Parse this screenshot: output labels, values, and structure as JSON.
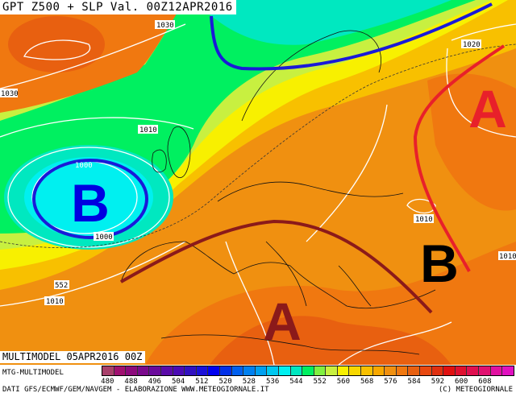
{
  "title": "GPT Z500 + SLP Val. 00Z12APR2016",
  "run_label": "MULTIMODEL 05APR2016 00Z",
  "model_label": "MTG-MULTIMODEL",
  "credit": "DATI GFS/ECMWF/GEM/NAVGEM - ELABORAZIONE WWW.METEOGIORNALE.IT",
  "copyright": "(C) METEOGIORNALE",
  "legend": {
    "unit_levels": [
      "480",
      "488",
      "496",
      "504",
      "512",
      "520",
      "528",
      "536",
      "544",
      "552",
      "560",
      "568",
      "576",
      "584",
      "592",
      "600",
      "608"
    ],
    "colors": [
      "#a8406a",
      "#a01070",
      "#8c0a7c",
      "#7a0a8c",
      "#6a0a9c",
      "#5a0aa8",
      "#4a0ab4",
      "#3010c0",
      "#1a10d8",
      "#0000f0",
      "#0030e8",
      "#0060f0",
      "#0080f0",
      "#00a0f0",
      "#00c8f0",
      "#00f0f0",
      "#00e8c0",
      "#00f060",
      "#80f040",
      "#c8f040",
      "#f8f000",
      "#f8d800",
      "#f8c000",
      "#f8a800",
      "#f09010",
      "#f07810",
      "#e86010",
      "#e84810",
      "#e03010",
      "#e01010",
      "#e01030",
      "#e01050",
      "#e01070",
      "#e010a0",
      "#e010c0"
    ]
  },
  "isobar_labels": [
    "1030",
    "1030",
    "1010",
    "1000",
    "1000",
    "552",
    "1010",
    "1020",
    "1010",
    "1010"
  ],
  "pressure_centers": [
    {
      "letter": "B",
      "type": "low",
      "color": "#0000e0"
    },
    {
      "letter": "B",
      "type": "low",
      "color": "#000000"
    },
    {
      "letter": "A",
      "type": "high",
      "color": "#e8202a"
    },
    {
      "letter": "A",
      "type": "high",
      "color": "#8b1a1a"
    }
  ],
  "feature_colors": {
    "trough": "#1a1ad8",
    "ridge": "#8b1a1a",
    "axis": "#e8202a"
  }
}
